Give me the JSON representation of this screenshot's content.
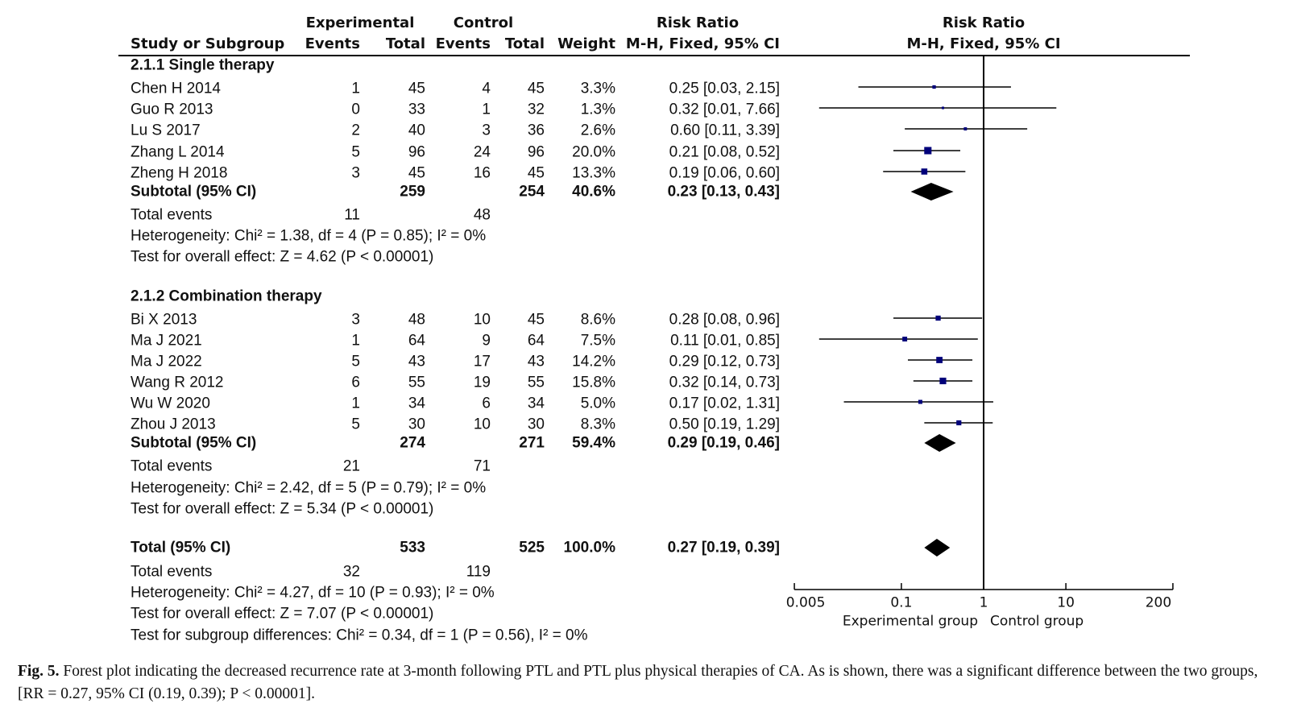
{
  "header": {
    "study": "Study or Subgroup",
    "experimental": "Experimental",
    "control": "Control",
    "events": "Events",
    "total": "Total",
    "weight": "Weight",
    "rr_title": "Risk Ratio",
    "rr_method": "M-H, Fixed, 95% CI"
  },
  "chart_data": {
    "type": "forest",
    "xscale": "log",
    "xlim": [
      0.005,
      200
    ],
    "xticks": [
      "0.005",
      "0.1",
      "1",
      "10",
      "200"
    ],
    "xlabel_left": "Experimental group",
    "xlabel_right": "Control group",
    "plot_title": "Risk Ratio",
    "plot_subtitle": "M-H, Fixed, 95% CI",
    "marker_color": "#00007a",
    "diamond_color": "#000000",
    "subgroups": [
      {
        "title": "2.1.1 Single therapy",
        "studies": [
          {
            "name": "Chen H 2014",
            "e_events": "1",
            "e_total": "45",
            "c_events": "4",
            "c_total": "45",
            "weight": "3.3%",
            "rr": 0.25,
            "lo": 0.03,
            "hi": 2.15,
            "ci_text": "0.25 [0.03, 2.15]"
          },
          {
            "name": "Guo R 2013",
            "e_events": "0",
            "e_total": "33",
            "c_events": "1",
            "c_total": "32",
            "weight": "1.3%",
            "rr": 0.32,
            "lo": 0.01,
            "hi": 7.66,
            "ci_text": "0.32 [0.01, 7.66]"
          },
          {
            "name": "Lu S 2017",
            "e_events": "2",
            "e_total": "40",
            "c_events": "3",
            "c_total": "36",
            "weight": "2.6%",
            "rr": 0.6,
            "lo": 0.11,
            "hi": 3.39,
            "ci_text": "0.60 [0.11, 3.39]"
          },
          {
            "name": "Zhang L 2014",
            "e_events": "5",
            "e_total": "96",
            "c_events": "24",
            "c_total": "96",
            "weight": "20.0%",
            "rr": 0.21,
            "lo": 0.08,
            "hi": 0.52,
            "ci_text": "0.21 [0.08, 0.52]"
          },
          {
            "name": "Zheng H 2018",
            "e_events": "3",
            "e_total": "45",
            "c_events": "16",
            "c_total": "45",
            "weight": "13.3%",
            "rr": 0.19,
            "lo": 0.06,
            "hi": 0.6,
            "ci_text": "0.19 [0.06, 0.60]"
          }
        ],
        "subtotal": {
          "label": "Subtotal (95% CI)",
          "e_total": "259",
          "c_total": "254",
          "weight": "40.6%",
          "rr": 0.23,
          "lo": 0.13,
          "hi": 0.43,
          "ci_text": "0.23 [0.13, 0.43]"
        },
        "total_events": {
          "label": "Total events",
          "e": "11",
          "c": "48"
        },
        "heterogeneity": "Heterogeneity: Chi² = 1.38, df = 4 (P = 0.85); I² = 0%",
        "overall": "Test for overall effect: Z = 4.62 (P < 0.00001)"
      },
      {
        "title": "2.1.2 Combination therapy",
        "studies": [
          {
            "name": "Bi X 2013",
            "e_events": "3",
            "e_total": "48",
            "c_events": "10",
            "c_total": "45",
            "weight": "8.6%",
            "rr": 0.28,
            "lo": 0.08,
            "hi": 0.96,
            "ci_text": "0.28 [0.08, 0.96]"
          },
          {
            "name": "Ma J 2021",
            "e_events": "1",
            "e_total": "64",
            "c_events": "9",
            "c_total": "64",
            "weight": "7.5%",
            "rr": 0.11,
            "lo": 0.01,
            "hi": 0.85,
            "ci_text": "0.11 [0.01, 0.85]"
          },
          {
            "name": "Ma J 2022",
            "e_events": "5",
            "e_total": "43",
            "c_events": "17",
            "c_total": "43",
            "weight": "14.2%",
            "rr": 0.29,
            "lo": 0.12,
            "hi": 0.73,
            "ci_text": "0.29 [0.12, 0.73]"
          },
          {
            "name": "Wang R 2012",
            "e_events": "6",
            "e_total": "55",
            "c_events": "19",
            "c_total": "55",
            "weight": "15.8%",
            "rr": 0.32,
            "lo": 0.14,
            "hi": 0.73,
            "ci_text": "0.32 [0.14, 0.73]"
          },
          {
            "name": "Wu W 2020",
            "e_events": "1",
            "e_total": "34",
            "c_events": "6",
            "c_total": "34",
            "weight": "5.0%",
            "rr": 0.17,
            "lo": 0.02,
            "hi": 1.31,
            "ci_text": "0.17 [0.02, 1.31]"
          },
          {
            "name": "Zhou J 2013",
            "e_events": "5",
            "e_total": "30",
            "c_events": "10",
            "c_total": "30",
            "weight": "8.3%",
            "rr": 0.5,
            "lo": 0.19,
            "hi": 1.29,
            "ci_text": "0.50 [0.19, 1.29]"
          }
        ],
        "subtotal": {
          "label": "Subtotal (95% CI)",
          "e_total": "274",
          "c_total": "271",
          "weight": "59.4%",
          "rr": 0.29,
          "lo": 0.19,
          "hi": 0.46,
          "ci_text": "0.29 [0.19, 0.46]"
        },
        "total_events": {
          "label": "Total events",
          "e": "21",
          "c": "71"
        },
        "heterogeneity": "Heterogeneity: Chi² = 2.42, df = 5 (P = 0.79); I² = 0%",
        "overall": "Test for overall effect: Z = 5.34 (P < 0.00001)"
      }
    ],
    "total": {
      "label": "Total (95% CI)",
      "e_total": "533",
      "c_total": "525",
      "weight": "100.0%",
      "rr": 0.27,
      "lo": 0.19,
      "hi": 0.39,
      "ci_text": "0.27 [0.19, 0.39]"
    },
    "total_events": {
      "label": "Total events",
      "e": "32",
      "c": "119"
    },
    "heterogeneity": "Heterogeneity: Chi² = 4.27, df = 10 (P = 0.93); I² = 0%",
    "overall": "Test for overall effect: Z = 7.07 (P < 0.00001)",
    "subgroup_diff": "Test for subgroup differences: Chi² = 0.34, df = 1 (P = 0.56), I² = 0%"
  },
  "caption": {
    "label": "Fig. 5.",
    "text": " Forest plot indicating the decreased recurrence rate at 3-month following PTL and PTL plus physical therapies of CA. As is shown, there was a significant difference between the two groups, [RR = 0.27, 95% CI (0.19, 0.39); P < 0.00001]."
  }
}
